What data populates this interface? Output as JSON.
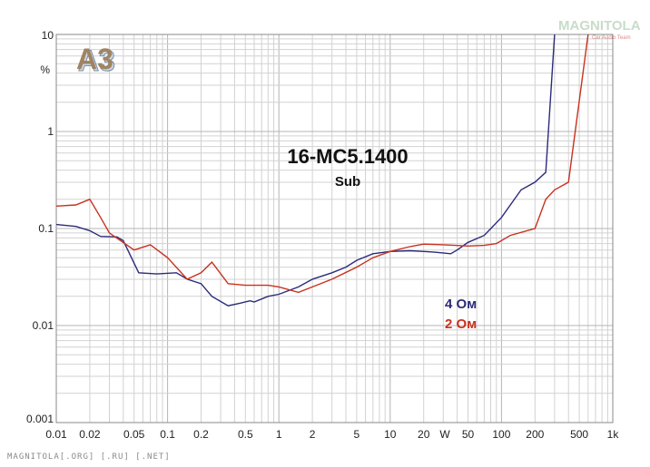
{
  "logo": {
    "text": "A3",
    "color": "#7a6a55"
  },
  "watermark": {
    "text": "MAGNITOLA",
    "sub": "Car Audio Team"
  },
  "footer": "MAGNITOLA[.ORG] [.RU] [.NET]",
  "chart_data": {
    "type": "line",
    "title": "16-MC5.1400",
    "subtitle": "Sub",
    "xscale": "log",
    "yscale": "log",
    "xlim": [
      0.01,
      1000
    ],
    "ylim": [
      0.001,
      10
    ],
    "xlabel": "W",
    "ylabel": "%",
    "grid": true,
    "legend_position": "center-right",
    "x_ticks": [
      {
        "value": 0.01,
        "label": "0.01"
      },
      {
        "value": 0.02,
        "label": "0.02"
      },
      {
        "value": 0.05,
        "label": "0.05"
      },
      {
        "value": 0.1,
        "label": "0.1"
      },
      {
        "value": 0.2,
        "label": "0.2"
      },
      {
        "value": 0.5,
        "label": "0.5"
      },
      {
        "value": 1,
        "label": "1"
      },
      {
        "value": 2,
        "label": "2"
      },
      {
        "value": 5,
        "label": "5"
      },
      {
        "value": 10,
        "label": "10"
      },
      {
        "value": 20,
        "label": "20"
      },
      {
        "value": 50,
        "label": "50"
      },
      {
        "value": 100,
        "label": "100"
      },
      {
        "value": 200,
        "label": "200"
      },
      {
        "value": 500,
        "label": "500"
      },
      {
        "value": 1000,
        "label": "1k"
      }
    ],
    "y_ticks": [
      {
        "value": 10,
        "label": "10"
      },
      {
        "value": 1,
        "label": "1"
      },
      {
        "value": 0.1,
        "label": "0.1"
      },
      {
        "value": 0.01,
        "label": "0.01"
      },
      {
        "value": 0.001,
        "label": "0.001"
      }
    ],
    "series": [
      {
        "name": "4 Ом",
        "color": "#2b2b7a",
        "points": [
          [
            0.01,
            0.11
          ],
          [
            0.015,
            0.105
          ],
          [
            0.02,
            0.095
          ],
          [
            0.025,
            0.083
          ],
          [
            0.035,
            0.082
          ],
          [
            0.04,
            0.075
          ],
          [
            0.055,
            0.035
          ],
          [
            0.08,
            0.034
          ],
          [
            0.12,
            0.035
          ],
          [
            0.15,
            0.03
          ],
          [
            0.2,
            0.027
          ],
          [
            0.25,
            0.02
          ],
          [
            0.35,
            0.016
          ],
          [
            0.45,
            0.017
          ],
          [
            0.55,
            0.018
          ],
          [
            0.6,
            0.0175
          ],
          [
            0.8,
            0.02
          ],
          [
            1.0,
            0.021
          ],
          [
            1.5,
            0.025
          ],
          [
            2.0,
            0.03
          ],
          [
            3.0,
            0.035
          ],
          [
            4.0,
            0.04
          ],
          [
            5.0,
            0.047
          ],
          [
            7.0,
            0.055
          ],
          [
            10,
            0.058
          ],
          [
            15,
            0.059
          ],
          [
            20,
            0.058
          ],
          [
            25,
            0.057
          ],
          [
            35,
            0.055
          ],
          [
            40,
            0.06
          ],
          [
            50,
            0.072
          ],
          [
            70,
            0.085
          ],
          [
            100,
            0.13
          ],
          [
            150,
            0.25
          ],
          [
            200,
            0.3
          ],
          [
            250,
            0.38
          ],
          [
            300,
            10
          ]
        ]
      },
      {
        "name": "2 Ом",
        "color": "#c8321e",
        "points": [
          [
            0.01,
            0.17
          ],
          [
            0.015,
            0.175
          ],
          [
            0.02,
            0.2
          ],
          [
            0.025,
            0.13
          ],
          [
            0.03,
            0.09
          ],
          [
            0.05,
            0.06
          ],
          [
            0.07,
            0.068
          ],
          [
            0.1,
            0.05
          ],
          [
            0.15,
            0.03
          ],
          [
            0.2,
            0.035
          ],
          [
            0.25,
            0.045
          ],
          [
            0.35,
            0.027
          ],
          [
            0.5,
            0.026
          ],
          [
            0.8,
            0.026
          ],
          [
            1.0,
            0.025
          ],
          [
            1.5,
            0.022
          ],
          [
            2.0,
            0.025
          ],
          [
            3.0,
            0.03
          ],
          [
            5.0,
            0.04
          ],
          [
            7.0,
            0.05
          ],
          [
            10,
            0.058
          ],
          [
            15,
            0.065
          ],
          [
            20,
            0.069
          ],
          [
            30,
            0.068
          ],
          [
            50,
            0.066
          ],
          [
            70,
            0.067
          ],
          [
            90,
            0.07
          ],
          [
            120,
            0.085
          ],
          [
            200,
            0.1
          ],
          [
            250,
            0.2
          ],
          [
            300,
            0.25
          ],
          [
            400,
            0.3
          ],
          [
            600,
            10
          ]
        ]
      }
    ]
  }
}
